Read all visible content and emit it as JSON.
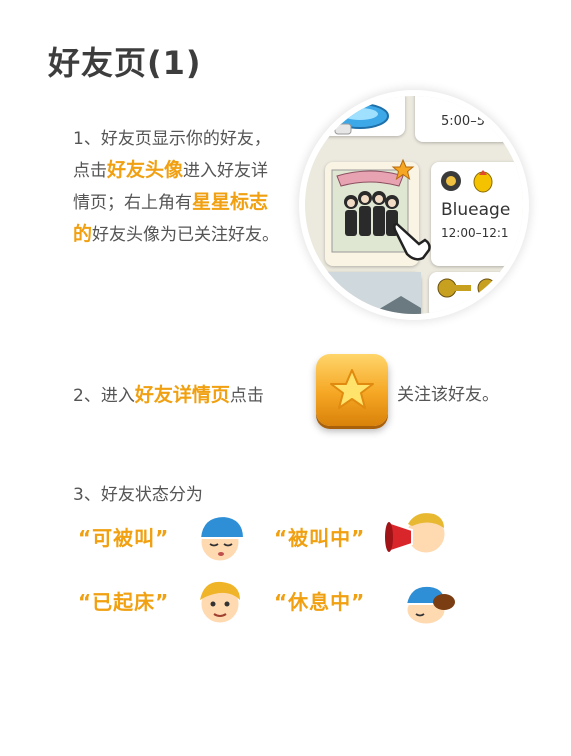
{
  "title": "好友页(1)",
  "step1": {
    "prefix_a": "1、好友页显示你的好友，点击",
    "highlight_a": "好友头像",
    "middle": "进入好友详情页；右上角有",
    "highlight_b": "星星标志的",
    "suffix": "好友头像为已关注好友。"
  },
  "screenshot": {
    "time_top": "5:00–5",
    "name": "Blueage",
    "time_range": "12:00–12:1"
  },
  "step2": {
    "prefix": "2、进入",
    "highlight": "好友详情页",
    "middle": "点击",
    "suffix": "关注该好友。"
  },
  "step3": {
    "heading": "3、好友状态分为",
    "statuses": [
      {
        "label": "“可被叫”",
        "icon": "sleeping-boy-blue-cap-icon"
      },
      {
        "label": "“被叫中”",
        "icon": "megaphone-shouting-icon"
      },
      {
        "label": "“已起床”",
        "icon": "awake-boy-icon"
      },
      {
        "label": "“休息中”",
        "icon": "resting-boy-icon"
      }
    ]
  },
  "colors": {
    "accent": "#f0a010",
    "text": "#555555",
    "title": "#3d3d3d"
  }
}
